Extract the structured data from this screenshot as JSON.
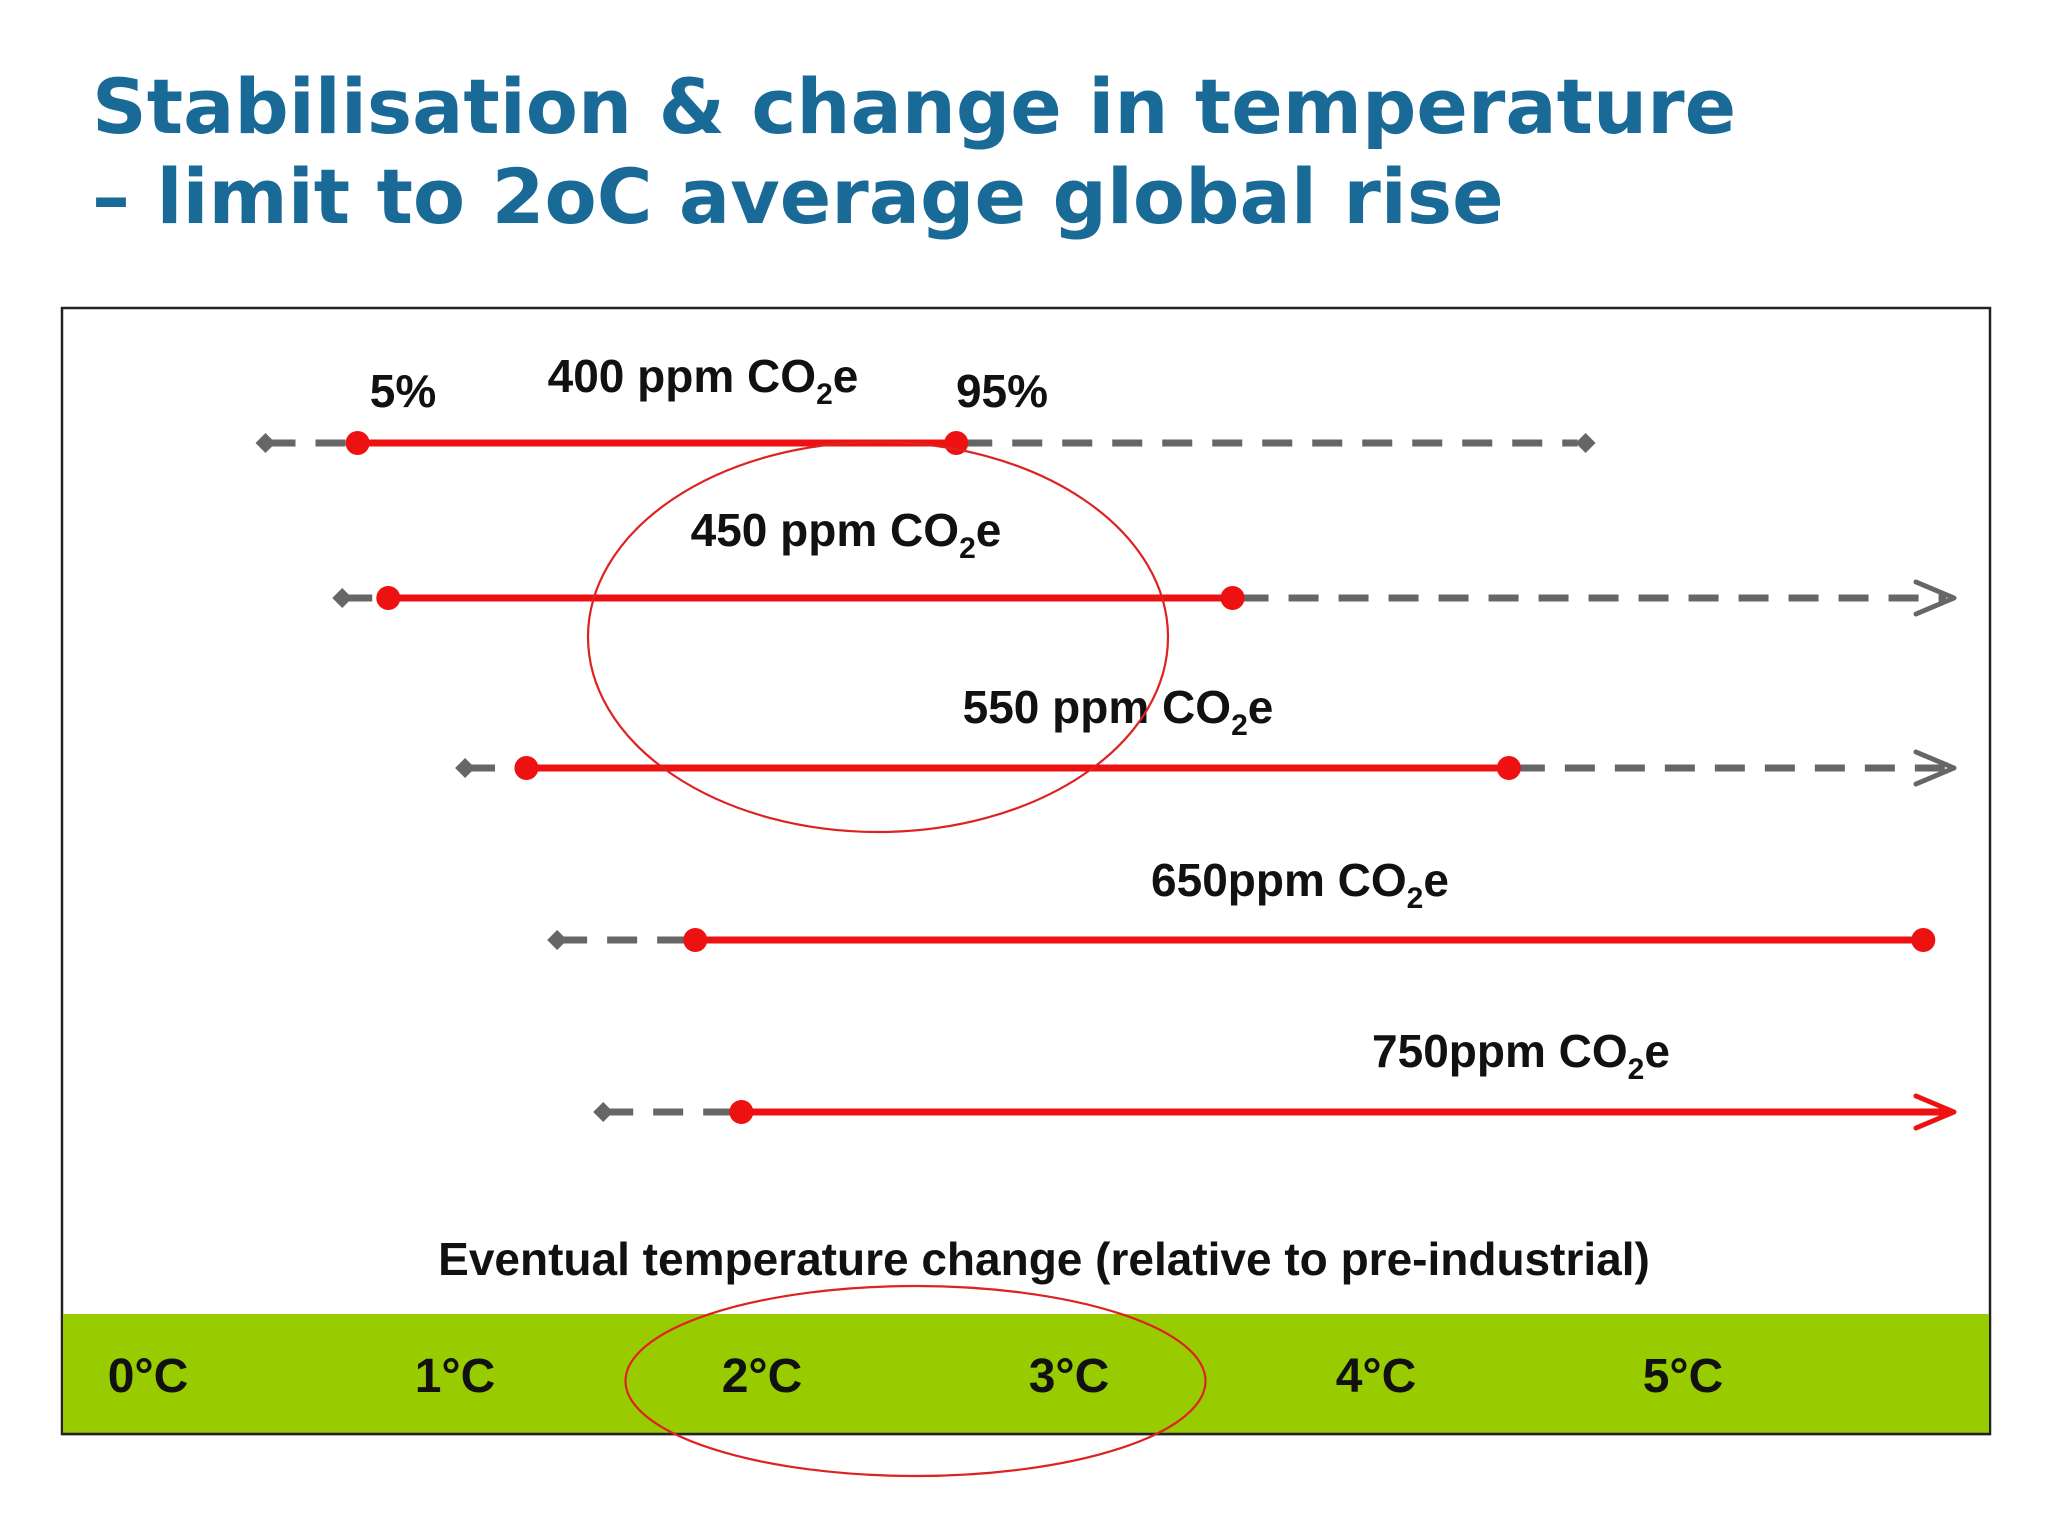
{
  "title": {
    "line1": "Stabilisation & change in temperature",
    "line2": "– limit to 2oC average global rise"
  },
  "chart_data": {
    "type": "range",
    "xlabel": "Eventual temperature change (relative to pre-industrial)",
    "tick_labels": [
      "0°C",
      "1°C",
      "2°C",
      "3°C",
      "4°C",
      "5°C"
    ],
    "xlim": [
      0,
      5.75
    ],
    "range_legend": {
      "low": "5%",
      "high": "95%"
    },
    "series": [
      {
        "name": "400 ppm CO₂e",
        "label_main": "400 ppm CO",
        "label_sub": "2",
        "label_end": "e",
        "full_low": 0.5,
        "full_high": 4.8,
        "ci_low": 0.8,
        "ci_high": 2.75,
        "open_high": false,
        "solid_open_high": false
      },
      {
        "name": "450 ppm CO₂e",
        "label_main": "450 ppm CO",
        "label_sub": "2",
        "label_end": "e",
        "full_low": 0.75,
        "full_high": 6.0,
        "ci_low": 0.9,
        "ci_high": 3.65,
        "open_high": true,
        "solid_open_high": false
      },
      {
        "name": "550 ppm CO₂e",
        "label_main": "550 ppm CO",
        "label_sub": "2",
        "label_end": "e",
        "full_low": 1.15,
        "full_high": 6.0,
        "ci_low": 1.35,
        "ci_high": 4.55,
        "open_high": true,
        "solid_open_high": false
      },
      {
        "name": "650ppm CO₂e",
        "label_main": "650ppm CO",
        "label_sub": "2",
        "label_end": "e",
        "full_low": 1.45,
        "full_high": 5.9,
        "ci_low": 1.9,
        "ci_high": 5.9,
        "open_high": false,
        "solid_open_high": false
      },
      {
        "name": "750ppm CO₂e",
        "label_main": "750ppm CO",
        "label_sub": "2",
        "label_end": "e",
        "full_low": 1.6,
        "full_high": 6.0,
        "ci_low": 2.05,
        "ci_high": 6.0,
        "open_high": true,
        "solid_open_high": true
      }
    ],
    "highlight_range": [
      2,
      3
    ],
    "colors": {
      "title": "#1a6a98",
      "ci_line": "#ee1111",
      "full_range": "#666666",
      "axis_band": "#99cc00",
      "highlight": "#dd2222",
      "frame": "#222222"
    }
  }
}
